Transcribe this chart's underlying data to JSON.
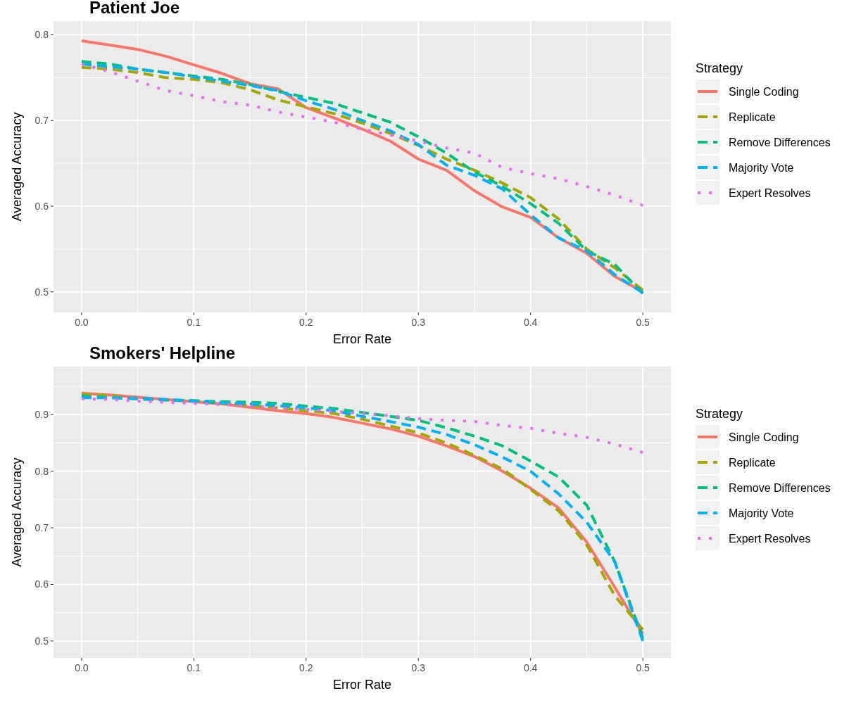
{
  "chart_data": [
    {
      "type": "line",
      "title": "Patient Joe",
      "xlabel": "Error Rate",
      "ylabel": "Averaged Accuracy",
      "legend_title": "Strategy",
      "legend": "right",
      "grid": true,
      "x": [
        0,
        0.025,
        0.05,
        0.075,
        0.1,
        0.125,
        0.15,
        0.175,
        0.2,
        0.225,
        0.25,
        0.275,
        0.3,
        0.325,
        0.35,
        0.375,
        0.4,
        0.425,
        0.45,
        0.475,
        0.5
      ],
      "xlim": [
        -0.025,
        0.525
      ],
      "xticks": [
        {
          "value": 0,
          "label": "0.0"
        },
        0.1,
        0.2,
        0.3,
        0.4,
        0.5
      ],
      "ylim": [
        0.476,
        0.816
      ],
      "yticks": [
        0.5,
        0.6,
        0.7,
        0.8
      ],
      "series": [
        {
          "name": "Single Coding",
          "color": "#f8766d",
          "line_style": "solid",
          "values": [
            0.793,
            0.788,
            0.783,
            0.775,
            0.765,
            0.755,
            0.743,
            0.737,
            0.715,
            0.703,
            0.69,
            0.676,
            0.655,
            0.642,
            0.618,
            0.599,
            0.587,
            0.563,
            0.545,
            0.518,
            0.5
          ]
        },
        {
          "name": "Replicate",
          "color": "#a3a500",
          "line_style": "dashed",
          "values": [
            0.762,
            0.76,
            0.756,
            0.75,
            0.748,
            0.744,
            0.736,
            0.724,
            0.716,
            0.708,
            0.697,
            0.685,
            0.671,
            0.655,
            0.642,
            0.627,
            0.61,
            0.585,
            0.55,
            0.528,
            0.502
          ]
        },
        {
          "name": "Remove Differences",
          "color": "#00bf7d",
          "line_style": "dashed",
          "values": [
            0.769,
            0.766,
            0.76,
            0.756,
            0.752,
            0.748,
            0.742,
            0.734,
            0.727,
            0.72,
            0.709,
            0.698,
            0.681,
            0.662,
            0.64,
            0.623,
            0.603,
            0.58,
            0.548,
            0.532,
            0.498
          ]
        },
        {
          "name": "Majority Vote",
          "color": "#00b0f6",
          "line_style": "dashed",
          "values": [
            0.766,
            0.763,
            0.76,
            0.756,
            0.751,
            0.746,
            0.741,
            0.735,
            0.723,
            0.713,
            0.7,
            0.688,
            0.672,
            0.648,
            0.636,
            0.62,
            0.59,
            0.563,
            0.548,
            0.52,
            0.499
          ]
        },
        {
          "name": "Expert Resolves",
          "color": "#e76bf3",
          "line_style": "dotted",
          "values": [
            0.766,
            0.757,
            0.746,
            0.735,
            0.729,
            0.722,
            0.718,
            0.71,
            0.704,
            0.698,
            0.69,
            0.683,
            0.676,
            0.668,
            0.662,
            0.645,
            0.638,
            0.632,
            0.623,
            0.613,
            0.601
          ]
        }
      ]
    },
    {
      "type": "line",
      "title": "Smokers' Helpline",
      "xlabel": "Error Rate",
      "ylabel": "Averaged Accuracy",
      "legend_title": "Strategy",
      "legend": "right",
      "grid": true,
      "x": [
        0,
        0.025,
        0.05,
        0.075,
        0.1,
        0.125,
        0.15,
        0.175,
        0.2,
        0.225,
        0.25,
        0.275,
        0.3,
        0.325,
        0.35,
        0.375,
        0.4,
        0.425,
        0.45,
        0.475,
        0.5
      ],
      "xlim": [
        -0.025,
        0.525
      ],
      "xticks": [
        {
          "value": 0,
          "label": "0.0"
        },
        0.1,
        0.2,
        0.3,
        0.4,
        0.5
      ],
      "ylim": [
        0.47,
        0.985
      ],
      "yticks": [
        0.5,
        0.6,
        0.7,
        0.8,
        0.9
      ],
      "series": [
        {
          "name": "Single Coding",
          "color": "#f8766d",
          "line_style": "solid",
          "values": [
            0.938,
            0.935,
            0.931,
            0.927,
            0.923,
            0.919,
            0.913,
            0.907,
            0.902,
            0.895,
            0.885,
            0.875,
            0.862,
            0.845,
            0.826,
            0.8,
            0.77,
            0.735,
            0.675,
            0.595,
            0.513
          ]
        },
        {
          "name": "Replicate",
          "color": "#a3a500",
          "line_style": "dashed",
          "values": [
            0.936,
            0.934,
            0.928,
            0.926,
            0.924,
            0.92,
            0.917,
            0.912,
            0.907,
            0.902,
            0.892,
            0.88,
            0.868,
            0.85,
            0.828,
            0.804,
            0.768,
            0.73,
            0.67,
            0.58,
            0.52
          ]
        },
        {
          "name": "Remove Differences",
          "color": "#00bf7d",
          "line_style": "dashed",
          "values": [
            0.933,
            0.93,
            0.928,
            0.926,
            0.925,
            0.923,
            0.922,
            0.92,
            0.915,
            0.911,
            0.904,
            0.897,
            0.89,
            0.877,
            0.862,
            0.845,
            0.818,
            0.79,
            0.74,
            0.64,
            0.505
          ]
        },
        {
          "name": "Majority Vote",
          "color": "#00b0f6",
          "line_style": "dashed",
          "values": [
            0.93,
            0.93,
            0.929,
            0.927,
            0.924,
            0.921,
            0.919,
            0.916,
            0.912,
            0.907,
            0.897,
            0.888,
            0.878,
            0.865,
            0.847,
            0.825,
            0.8,
            0.76,
            0.71,
            0.64,
            0.5
          ]
        },
        {
          "name": "Expert Resolves",
          "color": "#e76bf3",
          "line_style": "dotted",
          "values": [
            0.928,
            0.927,
            0.924,
            0.922,
            0.92,
            0.918,
            0.915,
            0.912,
            0.909,
            0.906,
            0.902,
            0.898,
            0.893,
            0.89,
            0.888,
            0.881,
            0.876,
            0.867,
            0.86,
            0.848,
            0.833
          ]
        }
      ]
    }
  ]
}
